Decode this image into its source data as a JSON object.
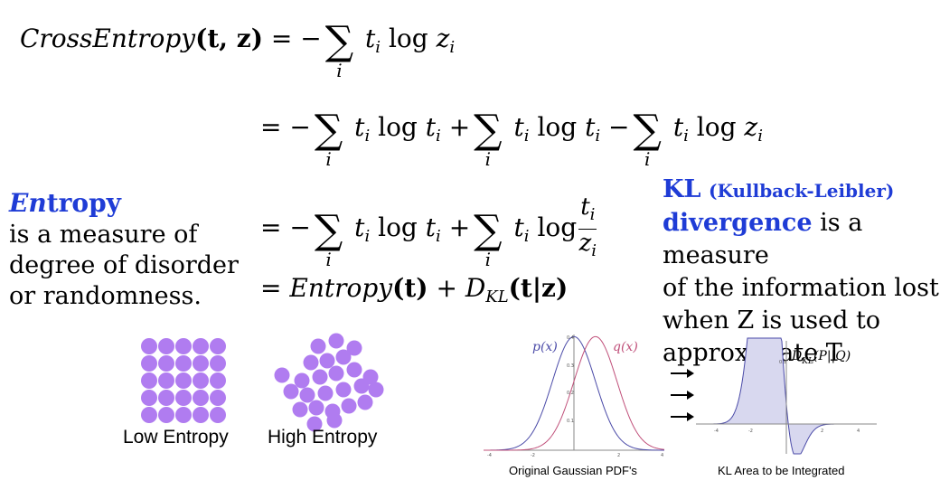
{
  "equations": {
    "line1_lhs": "CrossEntropy",
    "line1_args": "(t, z)",
    "equals": "=",
    "minus": "−",
    "plus": "+",
    "sum_index": "i",
    "t_i": "t",
    "z_i": "z",
    "log": "log",
    "entropy_fn": "Entropy",
    "kl_sym": "D",
    "kl_sub": "KL",
    "kl_args": "(t|z)",
    "entropy_args": "(t)"
  },
  "entropy_def": {
    "title_em": "En",
    "title_rest": "tropy",
    "line1": "is a measure of",
    "line2": "degree of disorder",
    "line3": "or randomness."
  },
  "kl_def": {
    "kl": "KL",
    "kl_full": "(Kullback-Leibler)",
    "divergence": "divergence",
    "rest1": " is a measure",
    "line2": "of the information lost",
    "line3": "when Z is used to",
    "line4": "approximate T"
  },
  "entropy_images": {
    "low_label": "Low Entropy",
    "high_label": "High Entropy",
    "dot_color": "#b07cf0"
  },
  "gaussian_plot": {
    "caption": "Original Gaussian PDF's",
    "p_label": "p(x)",
    "q_label": "q(x)",
    "p_color": "#4b4ba8",
    "q_color": "#c0507a",
    "y_ticks": [
      "0.4",
      "0.3",
      "0.2",
      "0.1"
    ],
    "x_ticks": [
      "-4",
      "-2",
      "2",
      "4"
    ]
  },
  "kl_plot": {
    "caption": "KL Area to be Integrated",
    "label_d": "D",
    "label_sub": "KL",
    "label_args": "(P||Q)",
    "fill_color": "#d8d8ef",
    "line_color": "#4b4ba8",
    "y_ticks": [
      "0.1"
    ],
    "x_ticks": [
      "-4",
      "-2",
      "2",
      "4"
    ]
  }
}
